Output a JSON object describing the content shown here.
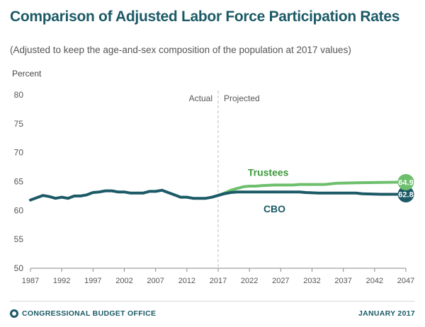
{
  "header": {
    "title": "Comparison of Adjusted Labor Force Participation Rates",
    "subtitle": "(Adjusted to keep the age-and-sex composition of the population at 2017 values)"
  },
  "footer": {
    "agency": "CONGRESSIONAL BUDGET OFFICE",
    "date": "JANUARY 2017"
  },
  "colors": {
    "cbo": "#1b5a66",
    "trustees": "#6dbf6d",
    "trustees_label": "#3c9a3c",
    "axis": "#888888"
  },
  "chart_data": {
    "type": "line",
    "ylabel": "Percent",
    "ylim": [
      50,
      80
    ],
    "yticks": [
      50,
      55,
      60,
      65,
      70,
      75,
      80
    ],
    "xlim": [
      1987,
      2047
    ],
    "xticks": [
      1987,
      1992,
      1997,
      2002,
      2007,
      2012,
      2017,
      2022,
      2027,
      2032,
      2037,
      2042,
      2047
    ],
    "divider": {
      "x": 2017,
      "left_label": "Actual",
      "right_label": "Projected"
    },
    "series": [
      {
        "name": "CBO",
        "end_label": "62.8",
        "points": [
          [
            1987,
            61.8
          ],
          [
            1988,
            62.2
          ],
          [
            1989,
            62.6
          ],
          [
            1990,
            62.4
          ],
          [
            1991,
            62.1
          ],
          [
            1992,
            62.3
          ],
          [
            1993,
            62.1
          ],
          [
            1994,
            62.5
          ],
          [
            1995,
            62.5
          ],
          [
            1996,
            62.7
          ],
          [
            1997,
            63.1
          ],
          [
            1998,
            63.2
          ],
          [
            1999,
            63.4
          ],
          [
            2000,
            63.4
          ],
          [
            2001,
            63.2
          ],
          [
            2002,
            63.2
          ],
          [
            2003,
            63.0
          ],
          [
            2004,
            63.0
          ],
          [
            2005,
            63.0
          ],
          [
            2006,
            63.3
          ],
          [
            2007,
            63.3
          ],
          [
            2008,
            63.5
          ],
          [
            2009,
            63.1
          ],
          [
            2010,
            62.7
          ],
          [
            2011,
            62.3
          ],
          [
            2012,
            62.3
          ],
          [
            2013,
            62.1
          ],
          [
            2014,
            62.1
          ],
          [
            2015,
            62.1
          ],
          [
            2016,
            62.3
          ],
          [
            2017,
            62.6
          ],
          [
            2018,
            62.9
          ],
          [
            2019,
            63.1
          ],
          [
            2020,
            63.2
          ],
          [
            2021,
            63.2
          ],
          [
            2022,
            63.2
          ],
          [
            2025,
            63.2
          ],
          [
            2027,
            63.2
          ],
          [
            2030,
            63.2
          ],
          [
            2031,
            63.1
          ],
          [
            2033,
            63.0
          ],
          [
            2037,
            63.0
          ],
          [
            2039,
            63.0
          ],
          [
            2040,
            62.9
          ],
          [
            2043,
            62.8
          ],
          [
            2047,
            62.8
          ]
        ]
      },
      {
        "name": "Trustees",
        "end_label": "64.9",
        "points": [
          [
            2017,
            62.6
          ],
          [
            2018,
            63.0
          ],
          [
            2019,
            63.5
          ],
          [
            2020,
            63.8
          ],
          [
            2021,
            64.1
          ],
          [
            2022,
            64.2
          ],
          [
            2023,
            64.2
          ],
          [
            2024,
            64.3
          ],
          [
            2026,
            64.4
          ],
          [
            2029,
            64.4
          ],
          [
            2030,
            64.5
          ],
          [
            2034,
            64.5
          ],
          [
            2036,
            64.7
          ],
          [
            2040,
            64.8
          ],
          [
            2047,
            64.9
          ]
        ]
      }
    ]
  }
}
